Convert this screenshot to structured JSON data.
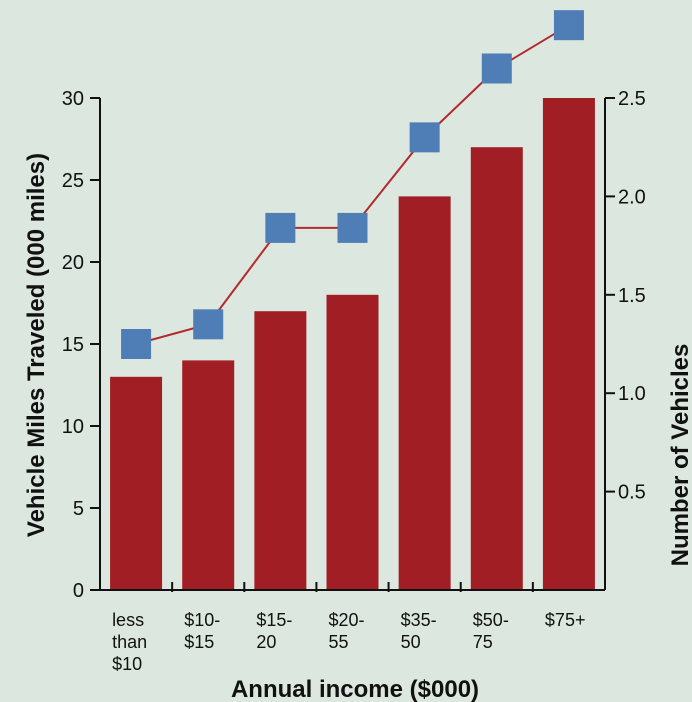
{
  "chart_data": {
    "type": "bar",
    "xlabel": "Annual income ($000)",
    "ylabel": "Vehicle Miles Traveled (000 miles)",
    "y2label": "Number of Vehicles",
    "categories": [
      [
        "less",
        "than",
        "$10"
      ],
      [
        "$10-",
        "$15"
      ],
      [
        "$15-",
        "20"
      ],
      [
        "$20-",
        "55"
      ],
      [
        "$35-",
        "50"
      ],
      [
        "$50-",
        "75"
      ],
      [
        "$75+"
      ]
    ],
    "series": [
      {
        "axis": "left",
        "type": "bar",
        "values": [
          13,
          14,
          17,
          18,
          24,
          27,
          30
        ]
      },
      {
        "axis": "right",
        "type": "line",
        "values": [
          1.25,
          1.35,
          1.84,
          1.84,
          2.3,
          2.65,
          2.87
        ]
      }
    ],
    "ylim": [
      0,
      30
    ],
    "yticks": [
      "0",
      "5",
      "10",
      "15",
      "20",
      "25",
      "30"
    ],
    "y2lim": [
      0,
      2.5
    ],
    "y2ticks": [
      "0.5",
      "1.0",
      "1.5",
      "2.0",
      "2.5"
    ],
    "grid": false,
    "legend": "none",
    "colors": {
      "bar": "#a11e25",
      "line": "#b22a2f",
      "marker": "#4f7db5",
      "background": "#dce8df",
      "axis": "#111111"
    }
  }
}
